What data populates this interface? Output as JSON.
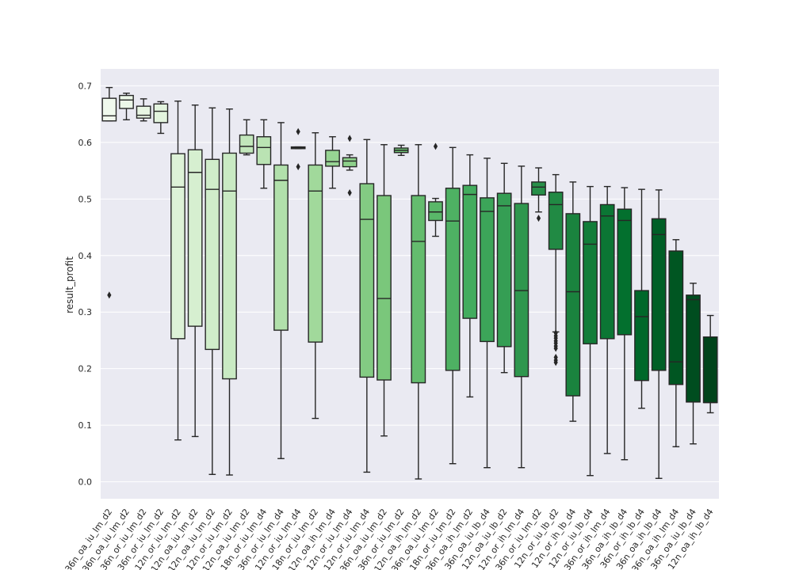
{
  "chart_data": {
    "type": "box",
    "title": "",
    "xlabel": "",
    "ylabel": "result_profit",
    "ylim": [
      -0.03,
      0.73
    ],
    "yticks": [
      0.0,
      0.1,
      0.2,
      0.3,
      0.4,
      0.5,
      0.6,
      0.7
    ],
    "ytick_labels": [
      "0.0",
      "0.1",
      "0.2",
      "0.3",
      "0.4",
      "0.5",
      "0.6",
      "0.7"
    ],
    "grid": true,
    "palette": "Greens",
    "boxes": [
      {
        "label": "36n_oa_iu_lm_d2",
        "q1": 0.638,
        "median": 0.647,
        "q3": 0.678,
        "whislo": 0.638,
        "whishi": 0.697,
        "fliers": [
          0.33
        ]
      },
      {
        "label": "36n_oa_iu_lm_d2",
        "q1": 0.66,
        "median": 0.675,
        "q3": 0.683,
        "whislo": 0.64,
        "whishi": 0.687,
        "fliers": []
      },
      {
        "label": "36n_or_iu_lm_d2",
        "q1": 0.643,
        "median": 0.648,
        "q3": 0.664,
        "whislo": 0.638,
        "whishi": 0.677,
        "fliers": []
      },
      {
        "label": "36n_or_iu_lm_d2",
        "q1": 0.635,
        "median": 0.655,
        "q3": 0.668,
        "whislo": 0.616,
        "whishi": 0.672,
        "fliers": []
      },
      {
        "label": "12n_or_iu_lm_d2",
        "q1": 0.253,
        "median": 0.521,
        "q3": 0.58,
        "whislo": 0.074,
        "whishi": 0.673,
        "fliers": []
      },
      {
        "label": "12n_oa_iu_lm_d2",
        "q1": 0.275,
        "median": 0.547,
        "q3": 0.587,
        "whislo": 0.08,
        "whishi": 0.666,
        "fliers": []
      },
      {
        "label": "12n_oa_iu_lm_d2",
        "q1": 0.234,
        "median": 0.517,
        "q3": 0.57,
        "whislo": 0.013,
        "whishi": 0.661,
        "fliers": []
      },
      {
        "label": "12n_or_iu_lm_d2",
        "q1": 0.182,
        "median": 0.514,
        "q3": 0.581,
        "whislo": 0.012,
        "whishi": 0.659,
        "fliers": []
      },
      {
        "label": "12n_oa_iu_lm_d2",
        "q1": 0.581,
        "median": 0.593,
        "q3": 0.613,
        "whislo": 0.578,
        "whishi": 0.64,
        "fliers": []
      },
      {
        "label": "18n_or_iu_lm_d4",
        "q1": 0.561,
        "median": 0.591,
        "q3": 0.61,
        "whislo": 0.519,
        "whishi": 0.64,
        "fliers": []
      },
      {
        "label": "36n_or_iu_lm_d4",
        "q1": 0.268,
        "median": 0.533,
        "q3": 0.56,
        "whislo": 0.041,
        "whishi": 0.635,
        "fliers": []
      },
      {
        "label": "12n_or_iu_lm_d4",
        "q1": 0.589,
        "median": 0.591,
        "q3": 0.592,
        "whislo": 0.589,
        "whishi": 0.592,
        "fliers": [
          0.619,
          0.557
        ]
      },
      {
        "label": "18n_or_iu_lm_d2",
        "q1": 0.247,
        "median": 0.514,
        "q3": 0.56,
        "whislo": 0.112,
        "whishi": 0.617,
        "fliers": []
      },
      {
        "label": "12n_oa_ih_lm_d4",
        "q1": 0.558,
        "median": 0.566,
        "q3": 0.586,
        "whislo": 0.519,
        "whishi": 0.61,
        "fliers": []
      },
      {
        "label": "12n_or_iu_lm_d4",
        "q1": 0.557,
        "median": 0.567,
        "q3": 0.573,
        "whislo": 0.551,
        "whishi": 0.578,
        "fliers": [
          0.607,
          0.511
        ]
      },
      {
        "label": "12n_or_iu_lm_d4",
        "q1": 0.185,
        "median": 0.464,
        "q3": 0.527,
        "whislo": 0.017,
        "whishi": 0.605,
        "fliers": []
      },
      {
        "label": "36n_oa_iu_lm_d2",
        "q1": 0.18,
        "median": 0.324,
        "q3": 0.506,
        "whislo": 0.081,
        "whishi": 0.596,
        "fliers": []
      },
      {
        "label": "36n_or_iu_lm_d2",
        "q1": 0.582,
        "median": 0.586,
        "q3": 0.59,
        "whislo": 0.577,
        "whishi": 0.595,
        "fliers": []
      },
      {
        "label": "12n_oa_ih_lm_d2",
        "q1": 0.175,
        "median": 0.425,
        "q3": 0.506,
        "whislo": 0.005,
        "whishi": 0.596,
        "fliers": []
      },
      {
        "label": "36n_oa_iu_lm_d2",
        "q1": 0.462,
        "median": 0.477,
        "q3": 0.495,
        "whislo": 0.434,
        "whishi": 0.501,
        "fliers": [
          0.593
        ]
      },
      {
        "label": "18n_or_iu_lm_d2",
        "q1": 0.197,
        "median": 0.461,
        "q3": 0.519,
        "whislo": 0.032,
        "whishi": 0.591,
        "fliers": []
      },
      {
        "label": "36n_oa_ih_lm_d2",
        "q1": 0.289,
        "median": 0.508,
        "q3": 0.524,
        "whislo": 0.15,
        "whishi": 0.578,
        "fliers": []
      },
      {
        "label": "36n_oa_iu_lb_d4",
        "q1": 0.248,
        "median": 0.478,
        "q3": 0.502,
        "whislo": 0.025,
        "whishi": 0.572,
        "fliers": []
      },
      {
        "label": "12n_oa_iu_lb_d2",
        "q1": 0.239,
        "median": 0.488,
        "q3": 0.51,
        "whislo": 0.193,
        "whishi": 0.563,
        "fliers": []
      },
      {
        "label": "12n_or_ih_lm_d4",
        "q1": 0.186,
        "median": 0.338,
        "q3": 0.492,
        "whislo": 0.025,
        "whishi": 0.558,
        "fliers": []
      },
      {
        "label": "36n_or_iu_lm_d2",
        "q1": 0.507,
        "median": 0.521,
        "q3": 0.53,
        "whislo": 0.477,
        "whishi": 0.555,
        "fliers": [
          0.466
        ]
      },
      {
        "label": "12n_or_iu_lb_d2",
        "q1": 0.411,
        "median": 0.49,
        "q3": 0.512,
        "whislo": 0.265,
        "whishi": 0.543,
        "fliers": [
          0.263,
          0.258,
          0.254,
          0.249,
          0.245,
          0.24,
          0.236,
          0.22,
          0.215,
          0.211
        ]
      },
      {
        "label": "12n_or_ih_lb_d4",
        "q1": 0.152,
        "median": 0.336,
        "q3": 0.474,
        "whislo": 0.107,
        "whishi": 0.53,
        "fliers": []
      },
      {
        "label": "12n_or_iu_lb_d4",
        "q1": 0.244,
        "median": 0.42,
        "q3": 0.46,
        "whislo": 0.011,
        "whishi": 0.522,
        "fliers": []
      },
      {
        "label": "36n_or_ih_lm_d4",
        "q1": 0.253,
        "median": 0.47,
        "q3": 0.49,
        "whislo": 0.05,
        "whishi": 0.522,
        "fliers": []
      },
      {
        "label": "36n_oa_ih_lb_d4",
        "q1": 0.26,
        "median": 0.462,
        "q3": 0.482,
        "whislo": 0.039,
        "whishi": 0.52,
        "fliers": []
      },
      {
        "label": "36n_or_ih_lb_d4",
        "q1": 0.179,
        "median": 0.292,
        "q3": 0.338,
        "whislo": 0.13,
        "whishi": 0.517,
        "fliers": []
      },
      {
        "label": "36n_oa_ih_lb_d4",
        "q1": 0.197,
        "median": 0.437,
        "q3": 0.465,
        "whislo": 0.006,
        "whishi": 0.516,
        "fliers": []
      },
      {
        "label": "36n_oa_ih_lm_d4",
        "q1": 0.172,
        "median": 0.212,
        "q3": 0.408,
        "whislo": 0.062,
        "whishi": 0.428,
        "fliers": []
      },
      {
        "label": "36n_oa_iu_lb_d4",
        "q1": 0.141,
        "median": 0.322,
        "q3": 0.33,
        "whislo": 0.067,
        "whishi": 0.351,
        "fliers": []
      },
      {
        "label": "12n_oa_ih_lb_d4",
        "q1": 0.14,
        "median": 0.14,
        "q3": 0.256,
        "whislo": 0.122,
        "whishi": 0.294,
        "fliers": []
      }
    ]
  }
}
